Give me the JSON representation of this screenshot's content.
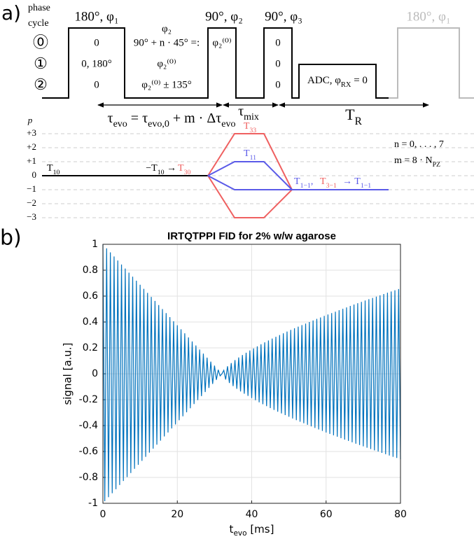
{
  "panel_a": {
    "label": "a)",
    "phase_cycle": [
      "phase",
      "cycle"
    ],
    "pulses": [
      {
        "label": "180°, φ₁",
        "rows": [
          "0",
          "0,  180°",
          "0"
        ]
      },
      {
        "label": "90°, φ₂",
        "rows": [
          "φ₂⁽⁰⁾"
        ]
      },
      {
        "label": "90°, φ₃",
        "rows": [
          "0",
          "0",
          "0"
        ]
      },
      {
        "label": "180°, φ₁"
      }
    ],
    "cycle_numbers": [
      "⓪",
      "①",
      "②"
    ],
    "phase_text": [
      "φ₂",
      "90° + n · 45° =:",
      "φ₂⁽⁰⁾",
      "φ₂⁽⁰⁾ ± 135°"
    ],
    "adc": [
      "ADC, φ",
      "RX",
      " = 0"
    ],
    "tau_evo": [
      "τ",
      "evo",
      " = τ",
      "evo,0",
      " + m · Δτ",
      "evo"
    ],
    "tau_mix": [
      "τ",
      "mix"
    ],
    "t_r": [
      "T",
      "R"
    ],
    "p": "p",
    "levels": [
      "+3",
      "+2",
      "+1",
      "0",
      "−1",
      "−2",
      "−3"
    ],
    "t10": [
      "T",
      "10"
    ],
    "t10_to": [
      "−T",
      "10",
      " → "
    ],
    "t30": [
      "T",
      "30"
    ],
    "t33": [
      "T",
      "33"
    ],
    "t11": [
      "T",
      "11"
    ],
    "t1m1": [
      "T",
      "1−1",
      ","
    ],
    "t3m1": [
      "T",
      "3−1"
    ],
    "to_t1m1": [
      " → T",
      "1−1"
    ],
    "n_range": "n = 0, . . . , 7",
    "m_eq": [
      "m = 8 · N",
      "PZ"
    ]
  },
  "panel_b_label": "b)",
  "chart_data": {
    "type": "line",
    "title": "IRTQTPPI FID for 2% w/w agarose",
    "xlabel": [
      "t",
      "evo",
      " [ms]"
    ],
    "ylabel": "signal [a.u.]",
    "x": [
      0,
      0.5,
      1,
      1.5,
      2,
      2.5,
      3,
      3.5,
      4,
      4.5,
      5,
      5.5,
      6,
      6.5,
      7,
      7.5,
      8,
      8.5,
      9,
      9.5,
      10,
      10.5,
      11,
      11.5,
      12,
      12.5,
      13,
      13.5,
      14,
      14.5,
      15,
      15.5,
      16,
      16.5,
      17,
      17.5,
      18,
      18.5,
      19,
      19.5,
      20,
      20.5,
      21,
      21.5,
      22,
      22.5,
      23,
      23.5,
      24,
      24.5,
      25,
      25.5,
      26,
      26.5,
      27,
      27.5,
      28,
      28.5,
      29,
      29.5,
      30,
      30.5,
      31,
      31.5,
      32,
      32.5,
      33,
      33.5,
      34,
      34.5,
      35,
      35.5,
      36,
      36.5,
      37,
      37.5,
      38,
      38.5,
      39,
      39.5,
      40,
      40.5,
      41,
      41.5,
      42,
      42.5,
      43,
      43.5,
      44,
      44.5,
      45,
      45.5,
      46,
      46.5,
      47,
      47.5,
      48,
      48.5,
      49,
      49.5,
      50,
      50.5,
      51,
      51.5,
      52,
      52.5,
      53,
      53.5,
      54,
      54.5,
      55,
      55.5,
      56,
      56.5,
      57,
      57.5,
      58,
      58.5,
      59,
      59.5,
      60,
      60.5,
      61,
      61.5,
      62,
      62.5,
      63,
      63.5,
      64,
      64.5,
      65,
      65.5,
      66,
      66.5,
      67,
      67.5,
      68,
      68.5,
      69,
      69.5,
      70,
      70.5,
      71,
      71.5,
      72,
      72.5,
      73,
      73.5,
      74,
      74.5,
      75,
      75.5,
      76,
      76.5,
      77,
      77.5,
      78,
      78.5,
      79,
      79.5,
      80
    ],
    "series": [
      {
        "color": "#0072bd",
        "values": [
          1,
          -0.984,
          0.969,
          -0.953,
          0.938,
          -0.922,
          0.906,
          -0.891,
          0.875,
          -0.859,
          0.844,
          -0.828,
          0.813,
          -0.797,
          0.781,
          -0.766,
          0.75,
          -0.734,
          0.719,
          -0.703,
          0.688,
          -0.672,
          0.656,
          -0.641,
          0.625,
          -0.609,
          0.594,
          -0.578,
          0.563,
          -0.547,
          0.531,
          -0.516,
          0.5,
          -0.484,
          0.469,
          -0.453,
          0.438,
          -0.422,
          0.406,
          -0.391,
          0.375,
          -0.359,
          0.344,
          -0.328,
          0.313,
          -0.297,
          0.281,
          -0.266,
          0.25,
          -0.234,
          0.219,
          -0.203,
          0.188,
          -0.172,
          0.156,
          -0.141,
          0.125,
          -0.109,
          0.094,
          -0.078,
          0.063,
          -0.047,
          0.031,
          -0.016,
          0,
          0.027,
          -0.044,
          0.058,
          -0.071,
          0.083,
          -0.095,
          0.106,
          -0.116,
          0.126,
          -0.136,
          0.145,
          -0.154,
          0.163,
          -0.171,
          0.18,
          -0.188,
          0.196,
          -0.204,
          0.212,
          -0.22,
          0.228,
          -0.235,
          0.243,
          -0.25,
          0.257,
          -0.265,
          0.272,
          -0.279,
          0.286,
          -0.293,
          0.299,
          -0.306,
          0.313,
          -0.319,
          0.326,
          -0.332,
          0.339,
          -0.345,
          0.352,
          -0.358,
          0.364,
          -0.37,
          0.376,
          -0.382,
          0.388,
          -0.394,
          0.4,
          -0.406,
          0.412,
          -0.418,
          0.424,
          -0.43,
          0.435,
          -0.441,
          0.447,
          -0.453,
          0.458,
          -0.464,
          0.469,
          -0.475,
          0.48,
          -0.486,
          0.491,
          -0.497,
          0.502,
          -0.508,
          0.513,
          -0.518,
          0.524,
          -0.529,
          0.535,
          -0.54,
          0.545,
          -0.55,
          0.555,
          -0.56,
          0.566,
          -0.571,
          0.576,
          -0.581,
          0.586,
          -0.591,
          0.596,
          -0.601,
          0.606,
          -0.611,
          0.616,
          -0.621,
          0.626,
          -0.631,
          0.636,
          -0.641,
          0.645,
          -0.65,
          0.655,
          -0.66
        ]
      }
    ],
    "xlim": [
      0,
      80
    ],
    "ylim": [
      -1,
      1
    ],
    "xticks": [
      0,
      20,
      40,
      60,
      80
    ],
    "yticks": [
      -1,
      -0.8,
      -0.6,
      -0.4,
      -0.2,
      0,
      0.2,
      0.4,
      0.6,
      0.8,
      1
    ],
    "grid": true
  }
}
